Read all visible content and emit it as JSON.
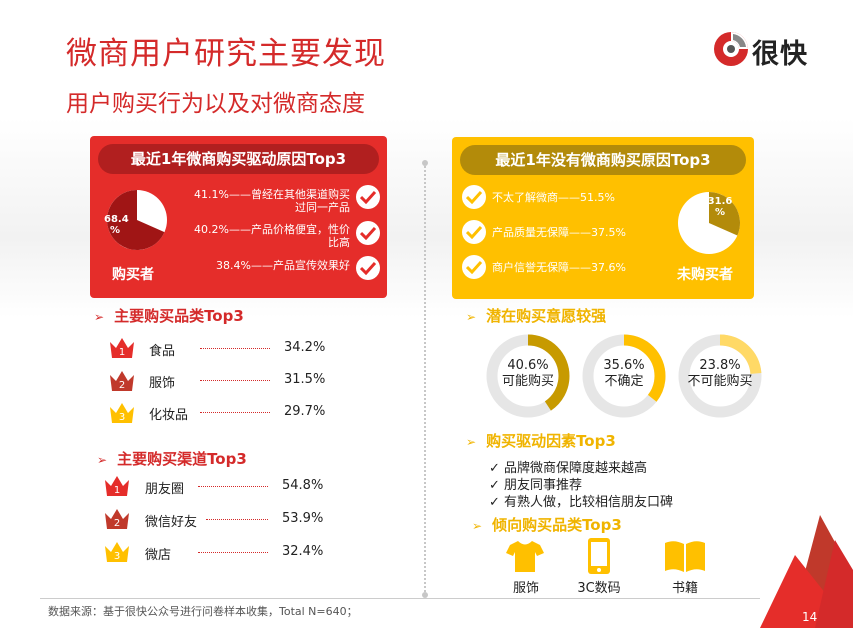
{
  "header": {
    "title": "微商用户研究主要发现",
    "subtitle": "用户购买行为以及对微商态度"
  },
  "logo": {
    "text": "很快"
  },
  "buyer_card": {
    "title": "最近1年微商购买驱动原因Top3",
    "pie_percent": "68.4",
    "pie_unit": "%",
    "pie_value": 68.4,
    "label": "购买者",
    "reasons": [
      {
        "line1": "41.1%——曾经在其他渠道购买",
        "line2": "过同一产品"
      },
      {
        "line1": "40.2%——产品价格便宜，性价",
        "line2": "比高"
      },
      {
        "line1": "38.4%——产品宣传效果好",
        "line2": ""
      }
    ]
  },
  "nonbuyer_card": {
    "title": "最近1年没有微商购买原因Top3",
    "pie_percent": "31.6",
    "pie_unit": "%",
    "pie_value": 31.6,
    "label": "未购买者",
    "reasons": [
      "不太了解微商——51.5%",
      "产品质量无保障——37.5%",
      "商户信誉无保障——37.6%"
    ]
  },
  "categories": {
    "title": "主要购买品类Top3",
    "items": [
      {
        "rank": "1",
        "name": "食品",
        "value": "34.2%"
      },
      {
        "rank": "2",
        "name": "服饰",
        "value": "31.5%"
      },
      {
        "rank": "3",
        "name": "化妆品",
        "value": "29.7%"
      }
    ]
  },
  "channels": {
    "title": "主要购买渠道Top3",
    "items": [
      {
        "rank": "1",
        "name": "朋友圈",
        "value": "54.8%"
      },
      {
        "rank": "2",
        "name": "微信好友",
        "value": "53.9%"
      },
      {
        "rank": "3",
        "name": "微店",
        "value": "32.4%"
      }
    ]
  },
  "intent": {
    "title": "潜在购买意愿较强",
    "rings": [
      {
        "percent": "40.6%",
        "label": "可能购买",
        "value": 40.6,
        "color": "#c79a00"
      },
      {
        "percent": "35.6%",
        "label": "不确定",
        "value": 35.6,
        "color": "#ffc000"
      },
      {
        "percent": "23.8%",
        "label": "不可能购买",
        "value": 23.8,
        "color": "#ffd966"
      }
    ]
  },
  "drivers": {
    "title": "购买驱动因素Top3",
    "items": [
      "✓ 品牌微商保障度越来越高",
      "✓ 朋友同事推荐",
      "✓ 有熟人做，比较相信朋友口碑"
    ]
  },
  "preferred": {
    "title": "倾向购买品类Top3",
    "items": [
      {
        "label": "服饰",
        "icon": "tshirt-icon"
      },
      {
        "label": "3C数码",
        "icon": "phone-icon"
      },
      {
        "label": "书籍",
        "icon": "book-icon"
      }
    ]
  },
  "footer": {
    "source": "数据来源：基于很快公众号进行问卷样本收集，Total N=640；",
    "page": "14"
  },
  "colors": {
    "red": "#e52d2a",
    "dark_red": "#b11f1f",
    "yellow": "#ffc000",
    "dark_yellow": "#b38b0a"
  }
}
